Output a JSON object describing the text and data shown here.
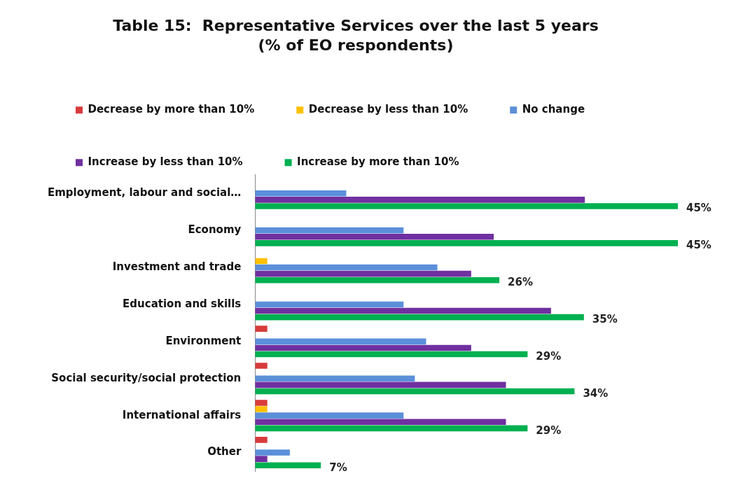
{
  "chart_data": {
    "type": "bar",
    "orientation": "horizontal",
    "title": "Table 15:  Representative Services over the last 5 years",
    "subtitle": "(% of EO respondents)",
    "categories": [
      "Employment, labour and social…",
      "Economy",
      "Investment and trade",
      "Education and skills",
      "Environment",
      "Social security/social protection",
      "International affairs",
      "Other"
    ],
    "series": [
      {
        "name": "Decrease by more than 10%",
        "color": "#d83b3b",
        "values": [
          null,
          null,
          null,
          null,
          1.3,
          1.3,
          1.3,
          1.3
        ]
      },
      {
        "name": "Decrease by less than 10%",
        "color": "#ffc000",
        "values": [
          null,
          null,
          1.3,
          null,
          null,
          null,
          1.3,
          null
        ]
      },
      {
        "name": "No change",
        "color": "#5b8fd9",
        "values": [
          9.7,
          15.8,
          19.4,
          15.8,
          18.2,
          17,
          15.8,
          3.7
        ]
      },
      {
        "name": "Increase by less than 10%",
        "color": "#7030a0",
        "values": [
          35.1,
          25.4,
          23,
          31.5,
          23,
          26.7,
          26.7,
          1.3
        ]
      },
      {
        "name": "Increase by more than 10%",
        "color": "#00b050",
        "values": [
          45,
          45,
          26,
          35,
          29,
          34,
          29,
          7
        ],
        "value_labels": [
          "45%",
          "45%",
          "26%",
          "35%",
          "29%",
          "34%",
          "29%",
          "7%"
        ]
      }
    ],
    "tick_labels": "y",
    "legend": "top"
  }
}
